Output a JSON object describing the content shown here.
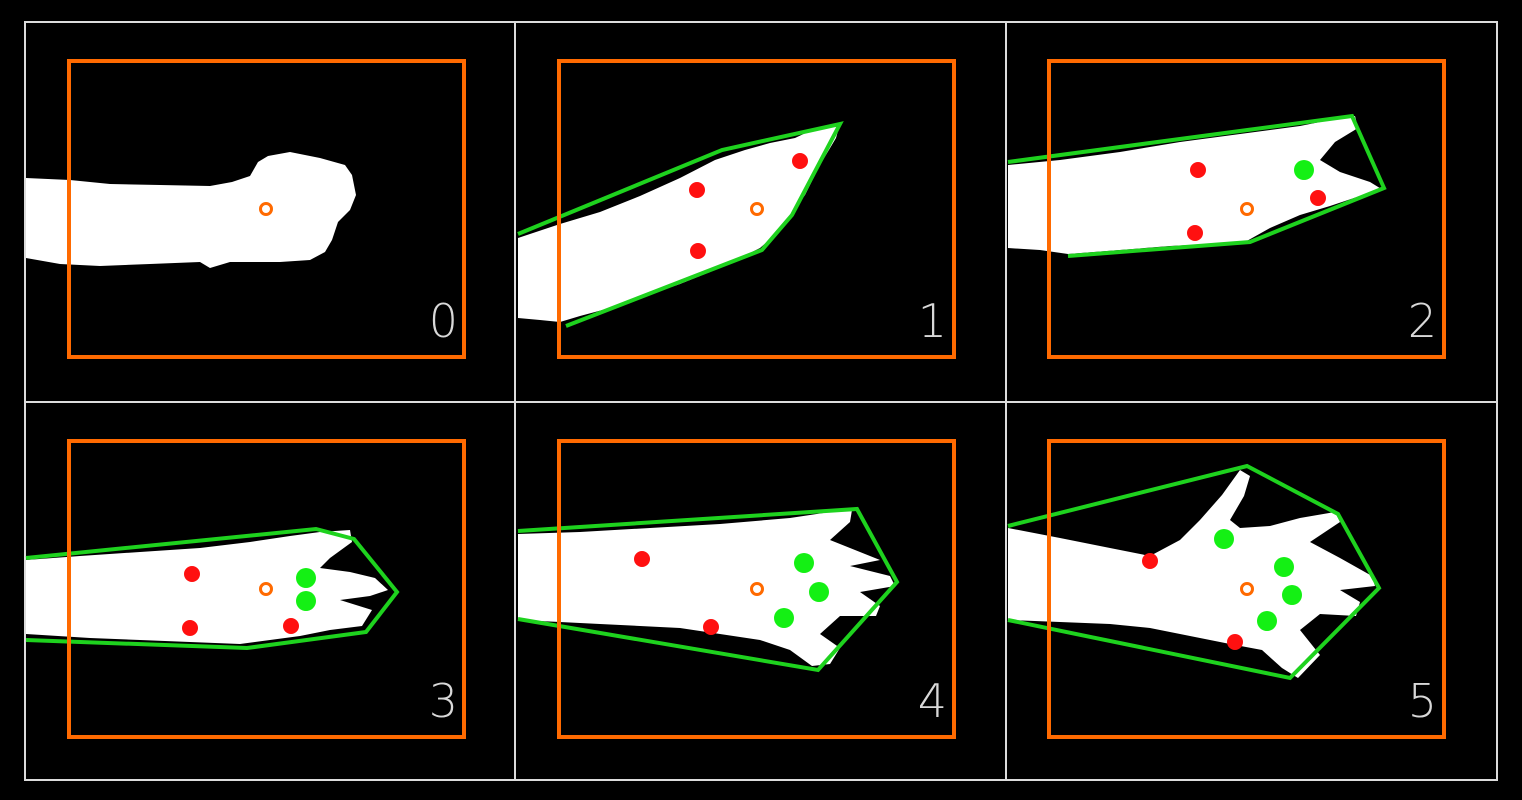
{
  "colors": {
    "background": "#000000",
    "grid_line": "#dcdcdc",
    "roi_box": "#ff6a00",
    "center_marker": "#ff6a00",
    "hand_mask": "#ffffff",
    "hull": "#1ed21e",
    "defect_points": "#ff1010",
    "fingertip_markers": "#14f014",
    "label_text": "#d8d8d8"
  },
  "panels": [
    {
      "label": "0",
      "finger_count": 0
    },
    {
      "label": "1",
      "finger_count": 1
    },
    {
      "label": "2",
      "finger_count": 2
    },
    {
      "label": "3",
      "finger_count": 3
    },
    {
      "label": "4",
      "finger_count": 4
    },
    {
      "label": "5",
      "finger_count": 5
    }
  ]
}
